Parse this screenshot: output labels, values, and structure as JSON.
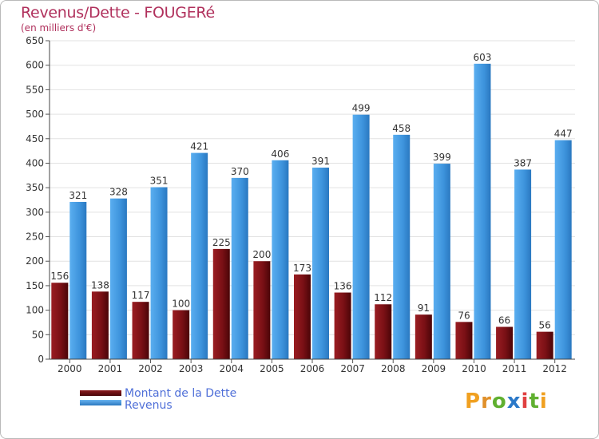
{
  "title": "Revenus/Dette - FOUGERé",
  "subtitle": "(en milliers d'€)",
  "chart_data": {
    "type": "bar",
    "title": "Revenus/Dette - FOUGERé",
    "ylabel": "(en milliers d'€)",
    "xlabel": "",
    "categories": [
      "2000",
      "2001",
      "2002",
      "2003",
      "2004",
      "2005",
      "2006",
      "2007",
      "2008",
      "2009",
      "2010",
      "2011",
      "2012"
    ],
    "series": [
      {
        "name": "Montant de la Dette",
        "color": "#7a1015",
        "values": [
          156,
          138,
          117,
          100,
          225,
          200,
          173,
          136,
          112,
          91,
          76,
          66,
          56
        ]
      },
      {
        "name": "Revenus",
        "color": "#3d93dc",
        "values": [
          321,
          328,
          351,
          421,
          370,
          406,
          391,
          499,
          458,
          399,
          603,
          387,
          447
        ]
      }
    ],
    "ylim": [
      0,
      650
    ],
    "yticks": [
      0,
      50,
      100,
      150,
      200,
      250,
      300,
      350,
      400,
      450,
      500,
      550,
      600,
      650
    ],
    "grid": true,
    "legend": "bottom-left"
  },
  "legend": {
    "items": [
      {
        "label": "Montant de la Dette",
        "color": "#6b0a0e"
      },
      {
        "label": "Revenus",
        "color": "#3d93dc"
      }
    ]
  },
  "logo": {
    "letters": [
      "P",
      "r",
      "o",
      "x",
      "i",
      "t",
      "i"
    ],
    "colors": [
      "#f0a020",
      "#e0902a",
      "#60b030",
      "#2a78c8",
      "#e04040",
      "#60b030",
      "#f0a020"
    ]
  }
}
